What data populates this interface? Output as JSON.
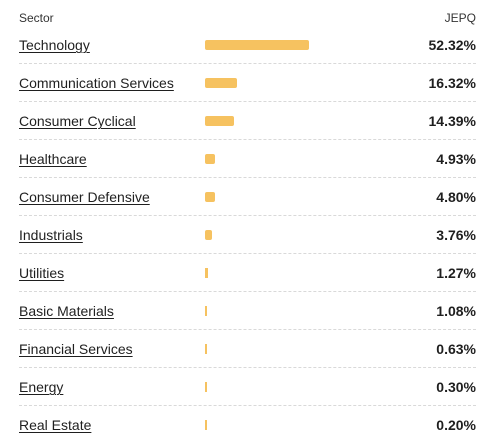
{
  "header": {
    "sector_label": "Sector",
    "fund_label": "JEPQ"
  },
  "colors": {
    "bar": "#f6c260"
  },
  "rows": [
    {
      "sector": "Technology",
      "weight": "52.32%",
      "value": 52.32
    },
    {
      "sector": "Communication Services",
      "weight": "16.32%",
      "value": 16.32
    },
    {
      "sector": "Consumer Cyclical",
      "weight": "14.39%",
      "value": 14.39
    },
    {
      "sector": "Healthcare",
      "weight": "4.93%",
      "value": 4.93
    },
    {
      "sector": "Consumer Defensive",
      "weight": "4.80%",
      "value": 4.8
    },
    {
      "sector": "Industrials",
      "weight": "3.76%",
      "value": 3.76
    },
    {
      "sector": "Utilities",
      "weight": "1.27%",
      "value": 1.27
    },
    {
      "sector": "Basic Materials",
      "weight": "1.08%",
      "value": 1.08
    },
    {
      "sector": "Financial Services",
      "weight": "0.63%",
      "value": 0.63
    },
    {
      "sector": "Energy",
      "weight": "0.30%",
      "value": 0.3
    },
    {
      "sector": "Real Estate",
      "weight": "0.20%",
      "value": 0.2
    }
  ]
}
